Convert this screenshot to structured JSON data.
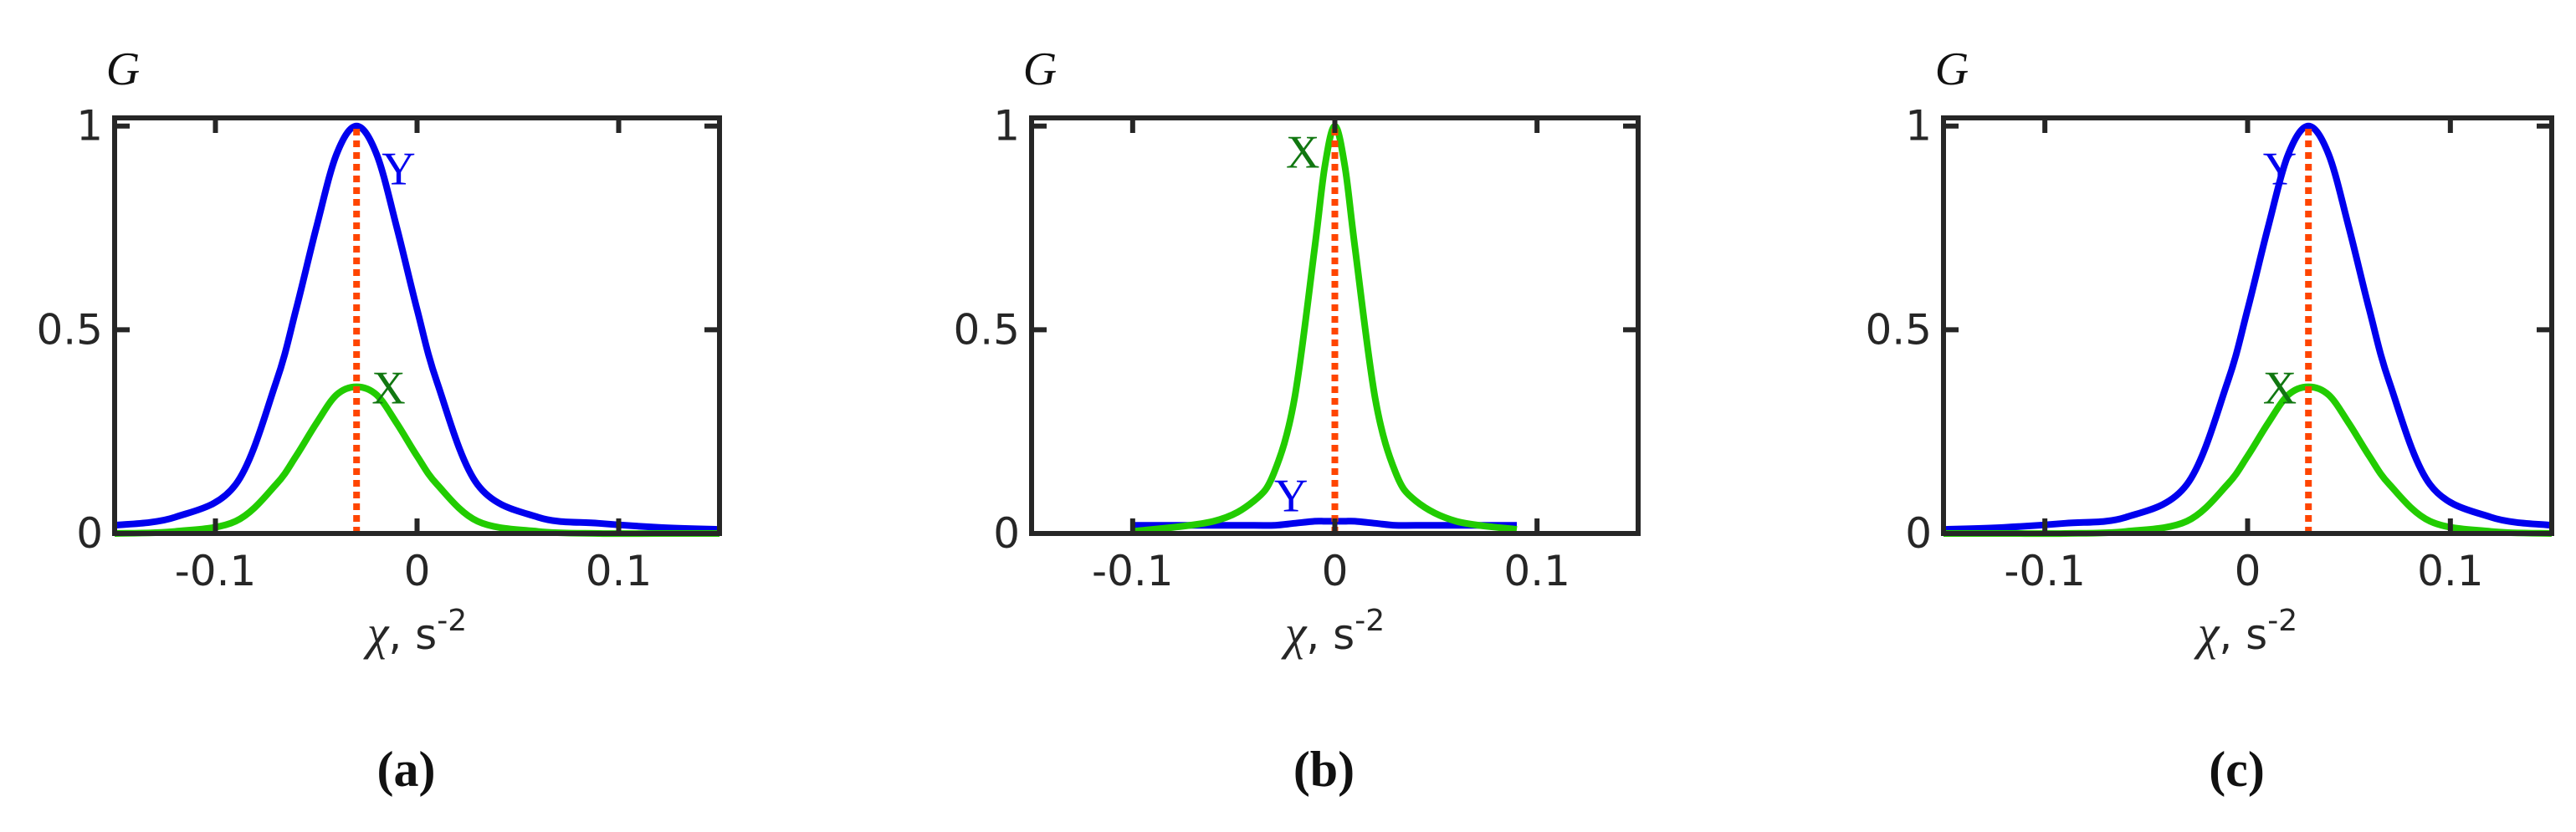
{
  "chart_data": [
    {
      "type": "line",
      "panel_label": "(a)",
      "y_label": "G",
      "x_label": {
        "symbol": "χ",
        "text": ", s",
        "sup": "-2"
      },
      "xlim": [
        -0.15,
        0.15
      ],
      "ylim": [
        0,
        1.02
      ],
      "xticks": [
        -0.1,
        0,
        0.1
      ],
      "yticks": [
        0,
        0.5,
        1
      ],
      "x": [
        -0.15,
        -0.12,
        -0.09,
        -0.07,
        -0.06,
        -0.05,
        -0.04,
        -0.03,
        -0.02,
        -0.01,
        0,
        0.01,
        0.03,
        0.06,
        0.09,
        0.12,
        0.15
      ],
      "series": [
        {
          "name": "Y",
          "color": "#0000ee",
          "values": [
            0.02,
            0.04,
            0.12,
            0.37,
            0.55,
            0.75,
            0.93,
            1,
            0.93,
            0.75,
            0.55,
            0.37,
            0.12,
            0.04,
            0.025,
            0.015,
            0.01
          ]
        },
        {
          "name": "X",
          "color": "#22cc00",
          "label_color": "#117711",
          "values": [
            0,
            0.005,
            0.03,
            0.12,
            0.19,
            0.27,
            0.34,
            0.36,
            0.34,
            0.27,
            0.19,
            0.12,
            0.03,
            0.005,
            0,
            0,
            0
          ]
        }
      ],
      "vline": {
        "x": -0.03,
        "color": "#ff4500"
      }
    },
    {
      "type": "line",
      "panel_label": "(b)",
      "y_label": "G",
      "x_label": {
        "symbol": "χ",
        "text": ", s",
        "sup": "-2"
      },
      "xlim": [
        -0.15,
        0.15
      ],
      "ylim": [
        0,
        1.02
      ],
      "xticks": [
        -0.1,
        0,
        0.1
      ],
      "yticks": [
        0,
        0.5,
        1
      ],
      "x": [
        -0.1,
        -0.06,
        -0.04,
        -0.03,
        -0.02,
        -0.01,
        -0.005,
        0,
        0.005,
        0.01,
        0.02,
        0.03,
        0.04,
        0.06,
        0.09
      ],
      "series": [
        {
          "name": "Y",
          "color": "#0000ee",
          "values": [
            0.02,
            0.02,
            0.02,
            0.02,
            0.025,
            0.03,
            0.03,
            0.03,
            0.03,
            0.03,
            0.025,
            0.02,
            0.02,
            0.02,
            0.02
          ]
        },
        {
          "name": "X",
          "color": "#22cc00",
          "label_color": "#117711",
          "values": [
            0.005,
            0.03,
            0.08,
            0.15,
            0.33,
            0.7,
            0.9,
            1,
            0.9,
            0.7,
            0.33,
            0.15,
            0.08,
            0.03,
            0.01
          ]
        }
      ],
      "vline": {
        "x": 0,
        "color": "#ff4500"
      }
    },
    {
      "type": "line",
      "panel_label": "(c)",
      "y_label": "G",
      "x_label": {
        "symbol": "χ",
        "text": ", s",
        "sup": "-2"
      },
      "xlim": [
        -0.15,
        0.15
      ],
      "ylim": [
        0,
        1.02
      ],
      "xticks": [
        -0.1,
        0,
        0.1
      ],
      "yticks": [
        0,
        0.5,
        1
      ],
      "x": [
        -0.15,
        -0.12,
        -0.09,
        -0.06,
        -0.03,
        -0.01,
        0,
        0.01,
        0.02,
        0.03,
        0.04,
        0.05,
        0.06,
        0.07,
        0.09,
        0.12,
        0.15
      ],
      "series": [
        {
          "name": "Y",
          "color": "#0000ee",
          "values": [
            0.01,
            0.015,
            0.025,
            0.04,
            0.12,
            0.37,
            0.55,
            0.75,
            0.93,
            1,
            0.93,
            0.75,
            0.55,
            0.37,
            0.12,
            0.04,
            0.02
          ]
        },
        {
          "name": "X",
          "color": "#22cc00",
          "label_color": "#117711",
          "values": [
            0,
            0,
            0,
            0.005,
            0.03,
            0.12,
            0.19,
            0.27,
            0.34,
            0.36,
            0.34,
            0.27,
            0.19,
            0.12,
            0.03,
            0.005,
            0
          ]
        }
      ],
      "vline": {
        "x": 0.03,
        "color": "#ff4500"
      }
    }
  ]
}
